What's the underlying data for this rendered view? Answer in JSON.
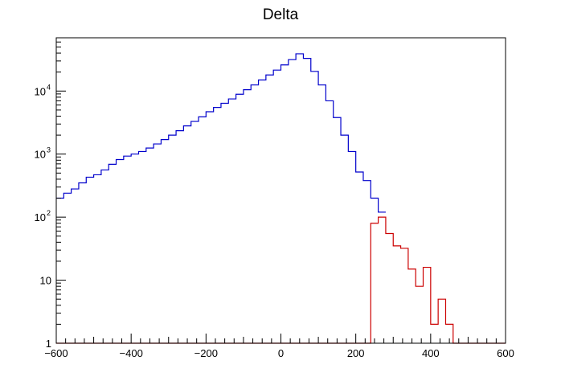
{
  "chart_data": {
    "type": "histogram",
    "title": "Delta",
    "xlabel": "",
    "ylabel": "",
    "xlim": [
      -600,
      600
    ],
    "ylim": [
      1,
      70000
    ],
    "y_scale": "log",
    "grid": false,
    "legend": "none",
    "x_ticks": [
      {
        "value": -600,
        "label": "−600"
      },
      {
        "value": -400,
        "label": "−400"
      },
      {
        "value": -200,
        "label": "−200"
      },
      {
        "value": 0,
        "label": "0"
      },
      {
        "value": 200,
        "label": "200"
      },
      {
        "value": 400,
        "label": "400"
      },
      {
        "value": 600,
        "label": "600"
      }
    ],
    "y_ticks": [
      {
        "value": 1,
        "base": "1",
        "exp": ""
      },
      {
        "value": 10,
        "base": "10",
        "exp": ""
      },
      {
        "value": 100,
        "base": "10",
        "exp": "2"
      },
      {
        "value": 1000,
        "base": "10",
        "exp": "3"
      },
      {
        "value": 10000,
        "base": "10",
        "exp": "4"
      }
    ],
    "bin_width": 20,
    "bin_start": -600,
    "series": [
      {
        "color": "#0000cc",
        "values": [
          200,
          240,
          280,
          350,
          430,
          470,
          560,
          690,
          820,
          930,
          1000,
          1100,
          1250,
          1450,
          1700,
          2000,
          2350,
          2800,
          3300,
          3900,
          4700,
          5500,
          6400,
          7500,
          8900,
          10500,
          12500,
          15000,
          18000,
          21500,
          26000,
          31500,
          39000,
          33000,
          20500,
          12500,
          7000,
          3800,
          2000,
          1100,
          520,
          380,
          200,
          120
        ]
      },
      {
        "color": "#cc0000",
        "values": [
          1,
          1,
          1,
          1,
          1,
          1,
          1,
          1,
          1,
          1,
          1,
          1,
          1,
          1,
          1,
          1,
          1,
          1,
          1,
          1,
          1,
          1,
          1,
          1,
          1,
          1,
          1,
          1,
          1,
          1,
          1,
          1,
          1,
          1,
          1,
          1,
          1,
          1,
          1,
          1,
          1,
          1,
          80,
          100,
          55,
          35,
          32,
          15,
          8,
          16,
          2,
          5,
          2,
          1,
          1,
          1,
          1,
          1,
          1,
          1
        ]
      }
    ]
  }
}
